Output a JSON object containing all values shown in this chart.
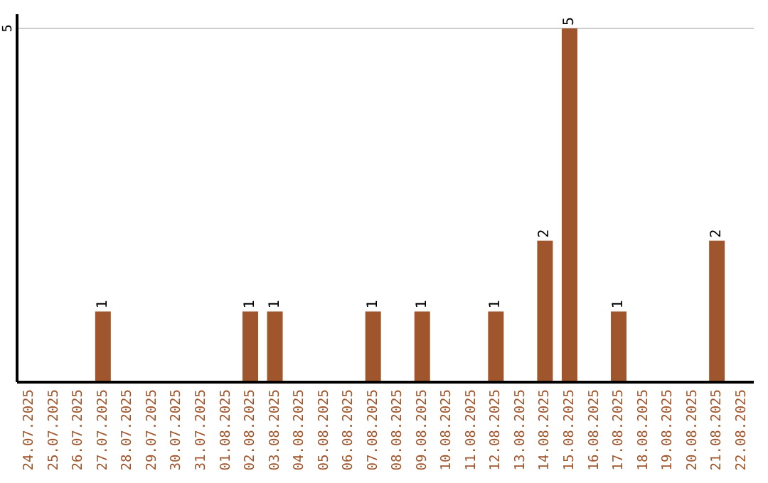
{
  "chart_data": {
    "type": "bar",
    "categories": [
      "24.07.2025",
      "25.07.2025",
      "26.07.2025",
      "27.07.2025",
      "28.07.2025",
      "29.07.2025",
      "30.07.2025",
      "31.07.2025",
      "01.08.2025",
      "02.08.2025",
      "03.08.2025",
      "04.08.2025",
      "05.08.2025",
      "06.08.2025",
      "07.08.2025",
      "08.08.2025",
      "09.08.2025",
      "10.08.2025",
      "11.08.2025",
      "12.08.2025",
      "13.08.2025",
      "14.08.2025",
      "15.08.2025",
      "16.08.2025",
      "17.08.2025",
      "18.08.2025",
      "19.08.2025",
      "20.08.2025",
      "21.08.2025",
      "22.08.2025"
    ],
    "values": [
      0,
      0,
      0,
      1,
      0,
      0,
      0,
      0,
      0,
      1,
      1,
      0,
      0,
      0,
      1,
      0,
      1,
      0,
      0,
      1,
      0,
      2,
      5,
      0,
      1,
      0,
      0,
      0,
      2,
      0
    ],
    "color": "#a0562c",
    "value_labels": [
      null,
      null,
      null,
      "1",
      null,
      null,
      null,
      null,
      null,
      "1",
      "1",
      null,
      null,
      null,
      "1",
      null,
      "1",
      null,
      null,
      "1",
      null,
      "2",
      "5",
      null,
      "1",
      null,
      null,
      null,
      "2",
      null
    ],
    "ylim": [
      0,
      5.2
    ],
    "yticks": [
      5
    ],
    "grid": "y"
  }
}
